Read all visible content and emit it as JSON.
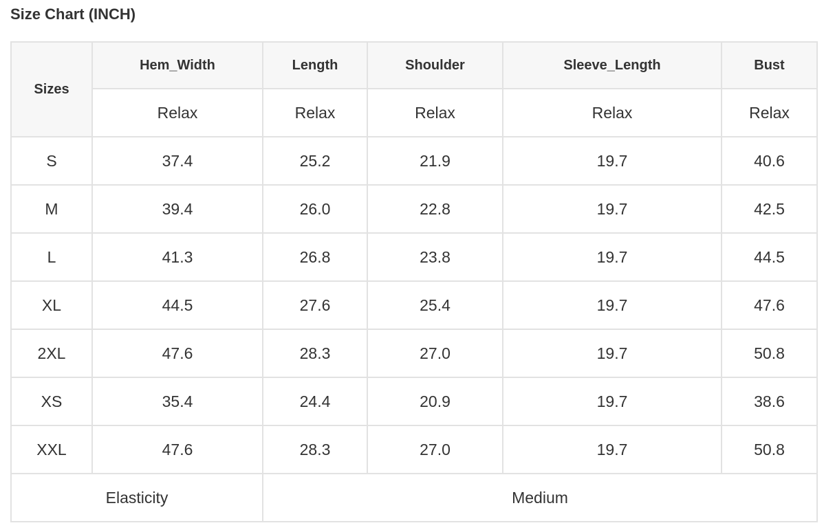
{
  "title": "Size Chart (INCH)",
  "header": {
    "sizes_label": "Sizes",
    "columns": [
      "Hem_Width",
      "Length",
      "Shoulder",
      "Sleeve_Length",
      "Bust"
    ],
    "subheaders": [
      "Relax",
      "Relax",
      "Relax",
      "Relax",
      "Relax"
    ]
  },
  "rows": [
    {
      "size": "S",
      "values": [
        "37.4",
        "25.2",
        "21.9",
        "19.7",
        "40.6"
      ]
    },
    {
      "size": "M",
      "values": [
        "39.4",
        "26.0",
        "22.8",
        "19.7",
        "42.5"
      ]
    },
    {
      "size": "L",
      "values": [
        "41.3",
        "26.8",
        "23.8",
        "19.7",
        "44.5"
      ]
    },
    {
      "size": "XL",
      "values": [
        "44.5",
        "27.6",
        "25.4",
        "19.7",
        "47.6"
      ]
    },
    {
      "size": "2XL",
      "values": [
        "47.6",
        "28.3",
        "27.0",
        "19.7",
        "50.8"
      ]
    },
    {
      "size": "XS",
      "values": [
        "35.4",
        "24.4",
        "20.9",
        "19.7",
        "38.6"
      ]
    },
    {
      "size": "XXL",
      "values": [
        "47.6",
        "28.3",
        "27.0",
        "19.7",
        "50.8"
      ]
    }
  ],
  "footer": {
    "label": "Elasticity",
    "value": "Medium"
  }
}
